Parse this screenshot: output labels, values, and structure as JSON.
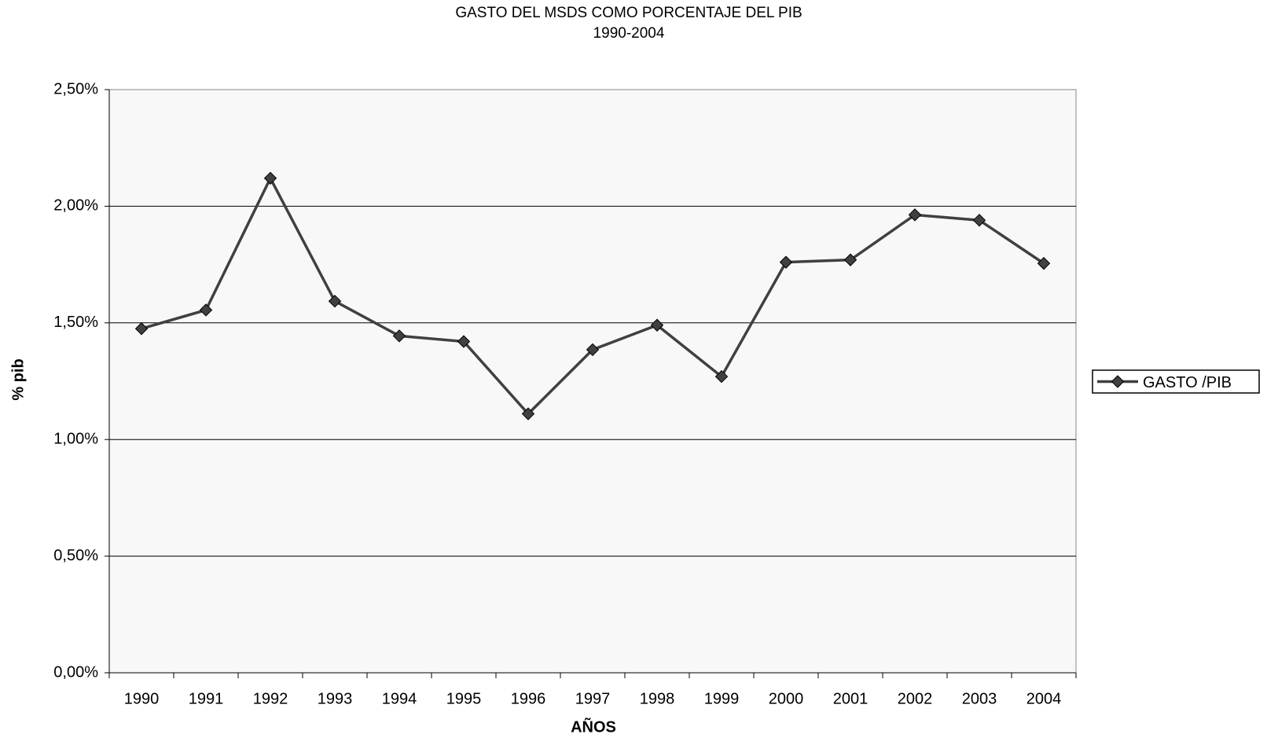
{
  "chart_data": {
    "type": "line",
    "title": "GASTO DEL MSDS COMO PORCENTAJE DEL PIB",
    "subtitle": "1990-2004",
    "x_label": "AÑOS",
    "y_label": "% pib",
    "categories": [
      "1990",
      "1991",
      "1992",
      "1993",
      "1994",
      "1995",
      "1996",
      "1997",
      "1998",
      "1999",
      "2000",
      "2001",
      "2002",
      "2003",
      "2004"
    ],
    "series": [
      {
        "name": "GASTO /PIB",
        "color": "#404040",
        "values": [
          1.475,
          1.555,
          2.12,
          1.593,
          1.444,
          1.42,
          1.11,
          1.385,
          1.49,
          1.27,
          1.76,
          1.77,
          1.963,
          1.94,
          1.755
        ]
      }
    ],
    "ylim": [
      0,
      2.5
    ],
    "yticks": [
      {
        "value": 0,
        "label": "0,00%"
      },
      {
        "value": 0.5,
        "label": "0,50%"
      },
      {
        "value": 1,
        "label": "1,00%"
      },
      {
        "value": 1.5,
        "label": "1,50%"
      },
      {
        "value": 2,
        "label": "2,00%"
      },
      {
        "value": 2.5,
        "label": "2,50%"
      }
    ],
    "grid": true,
    "legend": "right"
  }
}
